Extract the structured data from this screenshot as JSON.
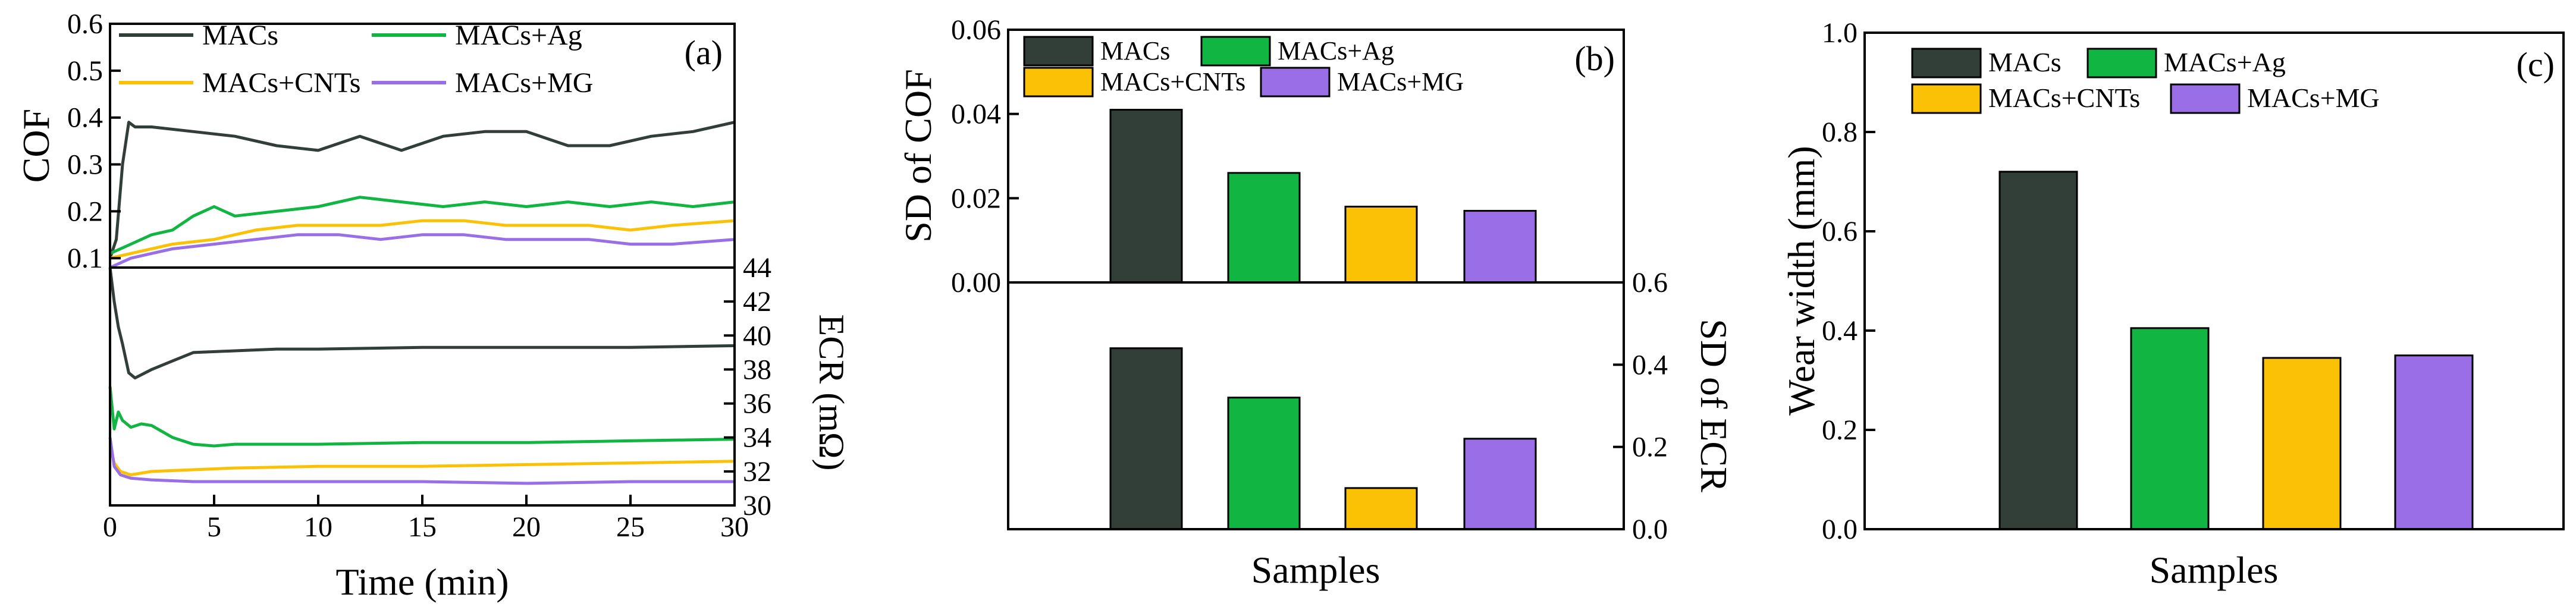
{
  "colors": {
    "MACs": "#323f38",
    "MACs+Ag": "#10b641",
    "MACs+CNTs": "#fbc105",
    "MACs+MG": "#9a6ee6"
  },
  "chart_data": [
    {
      "panel_label": "(a)",
      "type": "line",
      "xlabel": "Time (min)",
      "xlim": [
        0,
        30
      ],
      "x_ticks": [
        "0",
        "5",
        "10",
        "15",
        "20",
        "25",
        "30"
      ],
      "legend": [
        "MACs",
        "MACs+Ag",
        "MACs+CNTs",
        "MACs+MG"
      ],
      "legend_position": "top",
      "top": {
        "ylabel": "COF",
        "ylim": [
          0.08,
          0.6
        ],
        "y_ticks": [
          "0.1",
          "0.2",
          "0.3",
          "0.4",
          "0.5",
          "0.6"
        ],
        "series": [
          {
            "name": "MACs",
            "x": [
              0,
              0.3,
              0.6,
              0.9,
              1.2,
              2,
              4,
              6,
              8,
              10,
              12,
              14,
              16,
              18,
              20,
              22,
              24,
              26,
              28,
              30
            ],
            "y": [
              0.1,
              0.14,
              0.3,
              0.39,
              0.38,
              0.38,
              0.37,
              0.36,
              0.34,
              0.33,
              0.36,
              0.33,
              0.36,
              0.37,
              0.37,
              0.34,
              0.34,
              0.36,
              0.37,
              0.39
            ]
          },
          {
            "name": "MACs+Ag",
            "x": [
              0,
              1,
              2,
              3,
              4,
              5,
              6,
              8,
              10,
              12,
              14,
              16,
              18,
              20,
              22,
              24,
              26,
              28,
              30
            ],
            "y": [
              0.11,
              0.13,
              0.15,
              0.16,
              0.19,
              0.21,
              0.19,
              0.2,
              0.21,
              0.23,
              0.22,
              0.21,
              0.22,
              0.21,
              0.22,
              0.21,
              0.22,
              0.21,
              0.22
            ]
          },
          {
            "name": "MACs+CNTs",
            "x": [
              0,
              1,
              2,
              3,
              5,
              7,
              9,
              11,
              13,
              15,
              17,
              19,
              21,
              23,
              25,
              27,
              30
            ],
            "y": [
              0.1,
              0.11,
              0.12,
              0.13,
              0.14,
              0.16,
              0.17,
              0.17,
              0.17,
              0.18,
              0.18,
              0.17,
              0.17,
              0.17,
              0.16,
              0.17,
              0.18
            ]
          },
          {
            "name": "MACs+MG",
            "x": [
              0,
              1,
              2,
              3,
              5,
              7,
              9,
              11,
              13,
              15,
              17,
              19,
              21,
              23,
              25,
              27,
              30
            ],
            "y": [
              0.08,
              0.1,
              0.11,
              0.12,
              0.13,
              0.14,
              0.15,
              0.15,
              0.14,
              0.15,
              0.15,
              0.14,
              0.14,
              0.14,
              0.13,
              0.13,
              0.14
            ]
          }
        ]
      },
      "bottom": {
        "ylabel": "ECR (mΩ)",
        "ylim": [
          30,
          44
        ],
        "y_ticks": [
          "30",
          "32",
          "34",
          "36",
          "38",
          "40",
          "42",
          "44"
        ],
        "series": [
          {
            "name": "MACs",
            "x": [
              0,
              0.2,
              0.4,
              0.6,
              0.9,
              1.2,
              2,
              3,
              4,
              6,
              8,
              10,
              15,
              20,
              25,
              30
            ],
            "y": [
              44,
              42,
              40.5,
              39.5,
              37.8,
              37.5,
              38,
              38.5,
              39,
              39.1,
              39.2,
              39.2,
              39.3,
              39.3,
              39.3,
              39.4
            ]
          },
          {
            "name": "MACs+Ag",
            "x": [
              0,
              0.2,
              0.4,
              0.6,
              1,
              1.5,
              2,
              3,
              4,
              5,
              6,
              10,
              15,
              20,
              25,
              30
            ],
            "y": [
              37,
              34.5,
              35.5,
              35,
              34.6,
              34.8,
              34.7,
              34,
              33.6,
              33.5,
              33.6,
              33.6,
              33.7,
              33.7,
              33.8,
              33.9
            ]
          },
          {
            "name": "MACs+CNTs",
            "x": [
              0,
              0.2,
              0.5,
              1,
              2,
              4,
              6,
              10,
              15,
              20,
              25,
              30
            ],
            "y": [
              33.5,
              32.5,
              32,
              31.8,
              32,
              32.1,
              32.2,
              32.3,
              32.3,
              32.4,
              32.5,
              32.6
            ]
          },
          {
            "name": "MACs+MG",
            "x": [
              0,
              0.2,
              0.5,
              1,
              2,
              4,
              6,
              10,
              15,
              20,
              25,
              30
            ],
            "y": [
              34,
              32.3,
              31.8,
              31.6,
              31.5,
              31.4,
              31.4,
              31.4,
              31.4,
              31.3,
              31.4,
              31.4
            ]
          }
        ]
      }
    },
    {
      "panel_label": "(b)",
      "type": "bar",
      "xlabel": "Samples",
      "categories": [
        "MACs",
        "MACs+Ag",
        "MACs+CNTs",
        "MACs+MG"
      ],
      "legend_position": "top-left",
      "top": {
        "ylabel": "SD of COF",
        "ylim": [
          0,
          0.06
        ],
        "y_ticks": [
          "0.00",
          "0.02",
          "0.04",
          "0.06"
        ],
        "values": [
          0.041,
          0.026,
          0.018,
          0.017
        ]
      },
      "bottom": {
        "ylabel": "SD of ECR",
        "ylim": [
          0,
          0.6
        ],
        "y_ticks": [
          "0.0",
          "0.2",
          "0.4",
          "0.6"
        ],
        "values": [
          0.44,
          0.32,
          0.1,
          0.22
        ]
      }
    },
    {
      "panel_label": "(c)",
      "type": "bar",
      "xlabel": "Samples",
      "ylabel": "Wear width (mm)",
      "categories": [
        "MACs",
        "MACs+Ag",
        "MACs+CNTs",
        "MACs+MG"
      ],
      "ylim": [
        0,
        1.0
      ],
      "y_ticks": [
        "0.0",
        "0.2",
        "0.4",
        "0.6",
        "0.8",
        "1.0"
      ],
      "values": [
        0.72,
        0.405,
        0.345,
        0.35
      ],
      "legend_position": "top-left"
    }
  ]
}
